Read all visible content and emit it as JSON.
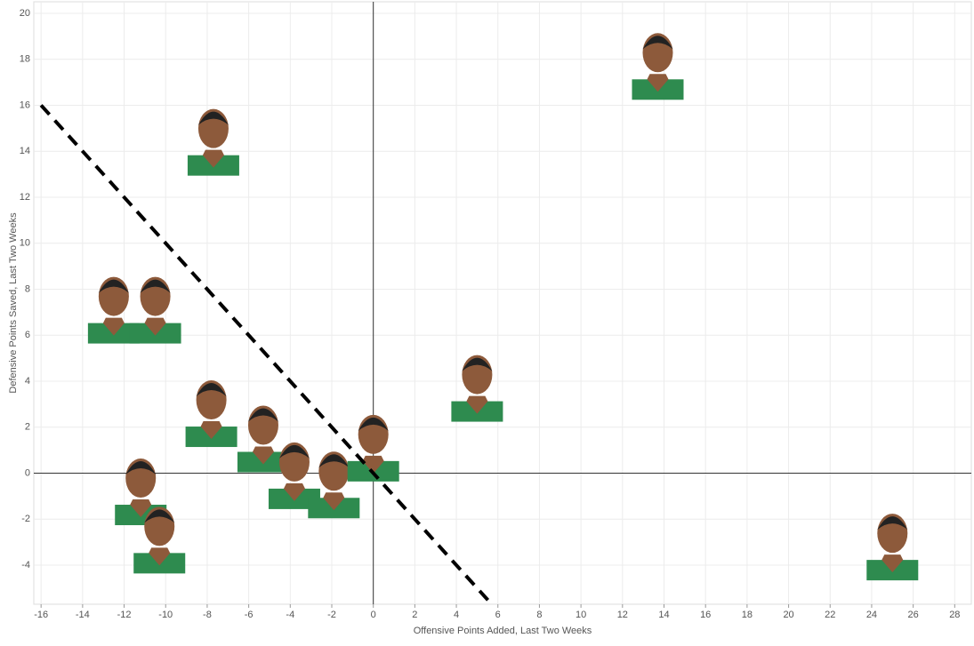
{
  "chart_data": {
    "type": "scatter",
    "x_label": "Offensive Points Added, Last Two Weeks",
    "y_label": "Defensive Points Saved, Last Two Weeks",
    "series": [
      {
        "color": "#2e8b4f",
        "x": [
          13.7,
          -7.7,
          -12.5,
          -10.5,
          5.0,
          -7.8,
          -5.3,
          -11.2,
          -10.3,
          -3.8,
          -1.9,
          0.0,
          25.0
        ],
        "values": [
          17.9,
          14.6,
          7.3,
          7.3,
          3.9,
          2.8,
          1.7,
          -0.6,
          -2.7,
          0.1,
          -0.3,
          1.3,
          -3.0
        ]
      }
    ],
    "reference_line": {
      "x": [
        -16,
        5.7
      ],
      "y": [
        16,
        -5.7
      ],
      "color": "#000000"
    },
    "xlim": [
      -16.35,
      28.8
    ],
    "ylim": [
      -5.7,
      20.5
    ],
    "xticks": [
      -16,
      -14,
      -12,
      -10,
      -8,
      -6,
      -4,
      -2,
      0,
      2,
      4,
      6,
      8,
      10,
      12,
      14,
      16,
      18,
      20,
      22,
      24,
      26,
      28
    ],
    "yticks": [
      -4,
      -2,
      0,
      2,
      4,
      6,
      8,
      10,
      12,
      14,
      16,
      18,
      20
    ],
    "grid": true
  }
}
